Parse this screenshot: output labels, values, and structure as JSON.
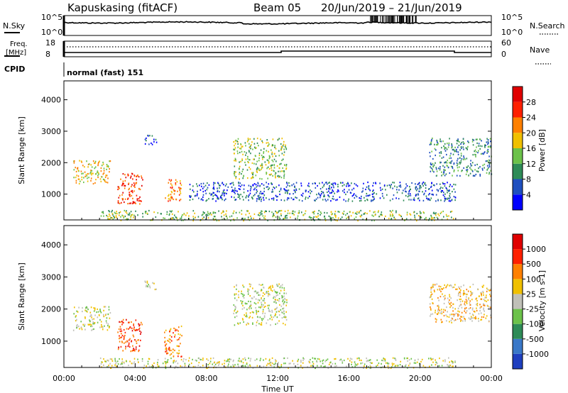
{
  "header": {
    "title": "Kapuskasing (fitACF)",
    "beam": "Beam 05",
    "date_range": "20/Jun/2019 – 21/Jun/2019"
  },
  "status_panels": {
    "nsky_label": "N.Sky",
    "nsearch_label": "N.Search",
    "nsky_top": "10^5",
    "nsky_bottom": "10^0",
    "nsearch_top": "10^5",
    "nsearch_bottom": "10^0",
    "freq_label_1": "Freq.",
    "freq_label_2": "[MHz]",
    "freq_top": "18",
    "freq_bottom": "8",
    "nave_label": "Nave",
    "nave_top": "60",
    "nave_bottom": "0",
    "cpid_label": "CPID",
    "cpid_value": "normal (fast) 151"
  },
  "chart_data": {
    "type": "heatmap",
    "x_axis": {
      "label": "Time UT",
      "ticks": [
        "00:00",
        "04:00",
        "08:00",
        "12:00",
        "16:00",
        "20:00",
        "00:00"
      ],
      "range_hours": [
        0,
        24
      ]
    },
    "y_axis": {
      "label": "Slant Range [km]",
      "ticks": [
        1000,
        2000,
        3000,
        4000
      ],
      "range": [
        180,
        4600
      ]
    },
    "panels": [
      {
        "name": "power",
        "colorbar_label": "Power [dB]",
        "colorbar_ticks": [
          "4",
          "8",
          "12",
          "16",
          "20",
          "24",
          "28"
        ],
        "colors": [
          "#0000ff",
          "#1f4fbf",
          "#2e8b57",
          "#6cc24a",
          "#f0c000",
          "#ff8000",
          "#ff2000",
          "#e00000"
        ],
        "features": [
          {
            "t": [
              0.5,
              2.6
            ],
            "r": [
              1350,
              2100
            ],
            "level": 4
          },
          {
            "t": [
              3.0,
              4.4
            ],
            "r": [
              700,
              1700
            ],
            "level": 6
          },
          {
            "t": [
              5.6,
              6.6
            ],
            "r": [
              800,
              1500
            ],
            "level": 5
          },
          {
            "t": [
              4.5,
              5.2
            ],
            "r": [
              2600,
              2900
            ],
            "level": 1
          },
          {
            "t": [
              9.5,
              12.5
            ],
            "r": [
              1500,
              2800
            ],
            "level": 3
          },
          {
            "t": [
              7.0,
              22.0
            ],
            "r": [
              800,
              1400
            ],
            "level": 1
          },
          {
            "t": [
              2.0,
              22.0
            ],
            "r": [
              180,
              500
            ],
            "level": 3
          },
          {
            "t": [
              20.5,
              24.0
            ],
            "r": [
              1600,
              2800
            ],
            "level": 2
          }
        ]
      },
      {
        "name": "velocity",
        "colorbar_label": "Velocity [m s-1]",
        "colorbar_ticks": [
          "1000",
          "500",
          "100",
          "25",
          "-25",
          "-100",
          "-500",
          "-1000"
        ],
        "colors": [
          "#1f3fbf",
          "#3a78c8",
          "#2e8b57",
          "#6cc24a",
          "#c0c0b8",
          "#f0c000",
          "#ff8000",
          "#ff2000",
          "#e00000"
        ],
        "features": [
          {
            "t": [
              0.5,
              2.6
            ],
            "r": [
              1350,
              2100
            ],
            "level": 4
          },
          {
            "t": [
              3.0,
              4.4
            ],
            "r": [
              700,
              1700
            ],
            "level": 7
          },
          {
            "t": [
              5.6,
              6.6
            ],
            "r": [
              500,
              1500
            ],
            "level": 6
          },
          {
            "t": [
              4.5,
              5.2
            ],
            "r": [
              2600,
              2900
            ],
            "level": 4
          },
          {
            "t": [
              9.5,
              12.5
            ],
            "r": [
              1500,
              2800
            ],
            "level": 4
          },
          {
            "t": [
              2.0,
              22.0
            ],
            "r": [
              180,
              500
            ],
            "level": 4
          },
          {
            "t": [
              20.5,
              24.0
            ],
            "r": [
              1600,
              2800
            ],
            "level": 5
          }
        ]
      }
    ]
  }
}
